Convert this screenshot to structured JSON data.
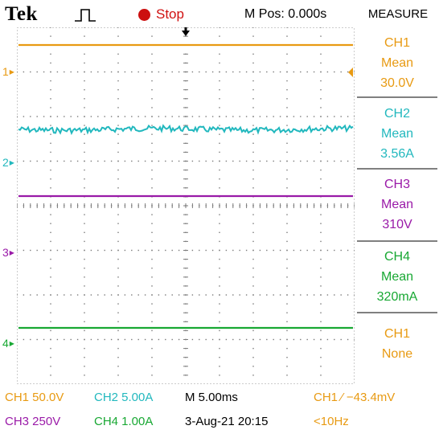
{
  "header": {
    "brand": "Tek",
    "trigger_icon": "pulse-edge-icon",
    "run_state": "Stop",
    "m_pos": "M Pos: 0.000s"
  },
  "measure": {
    "title": "MEASURE",
    "boxes": [
      {
        "channel": "CH1",
        "type": "Mean",
        "value": "30.0V",
        "color": "#e89a12"
      },
      {
        "channel": "CH2",
        "type": "Mean",
        "value": "3.56A",
        "color": "#22b8be"
      },
      {
        "channel": "CH3",
        "type": "Mean",
        "value": "310V",
        "color": "#9a1aa8"
      },
      {
        "channel": "CH4",
        "type": "Mean",
        "value": "320mA",
        "color": "#18a833"
      },
      {
        "channel": "CH1",
        "type": "None",
        "value": "",
        "color": "#e89a12"
      }
    ]
  },
  "channels": {
    "markers": [
      {
        "label": "1",
        "color": "#e89a12"
      },
      {
        "label": "2",
        "color": "#22b8be"
      },
      {
        "label": "3",
        "color": "#9a1aa8"
      },
      {
        "label": "4",
        "color": "#18a833"
      }
    ]
  },
  "footer": {
    "ch1_scale": "CH1  50.0V",
    "ch2_scale": "CH2  5.00A",
    "timebase": "M 5.00ms",
    "trigger": "CH1 ⁄ −43.4mV",
    "ch3_scale": "CH3  250V",
    "ch4_scale": "CH4  1.00A",
    "datetime": "3-Aug-21 20:15",
    "freq": "<10Hz"
  },
  "colors": {
    "ch1": "#e89a12",
    "ch2": "#22b8be",
    "ch3": "#9a1aa8",
    "ch4": "#18a833",
    "grid": "#7a7a7a",
    "stop": "#d01010"
  }
}
